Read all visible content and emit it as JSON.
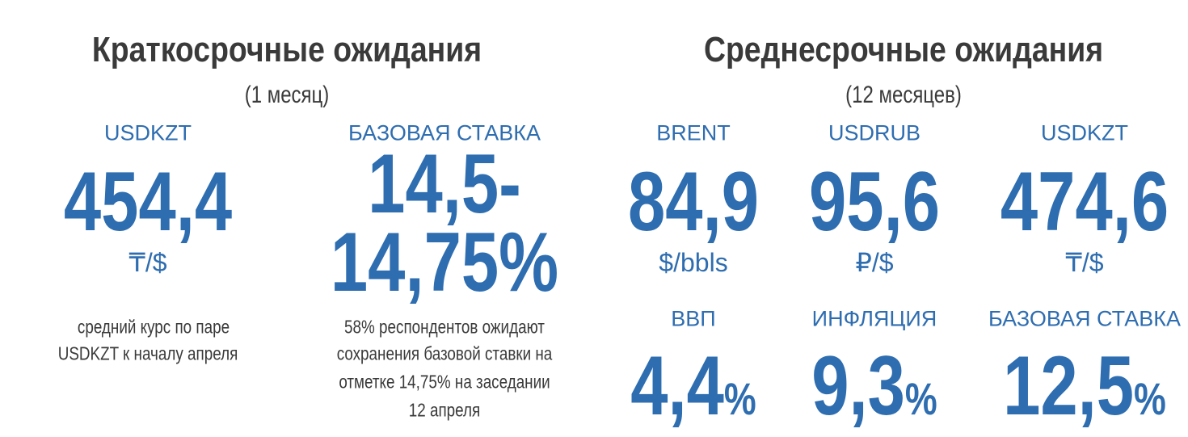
{
  "short_term": {
    "title": "Краткосрочные ожидания",
    "subtitle": "(1 месяц)",
    "items": [
      {
        "label": "USDKZT",
        "value": [
          "454,4"
        ],
        "unit": "₸/$",
        "note": [
          "средний курс по паре",
          "USDKZT к началу апреля"
        ]
      },
      {
        "label": "БАЗОВАЯ СТАВКА",
        "value": [
          "14,5-",
          "14,75%"
        ],
        "note": [
          "58% респондентов ожидают",
          "сохранения базовой ставки на",
          "отметке 14,75% на заседании",
          "12 апреля"
        ]
      }
    ]
  },
  "mid_term": {
    "title": "Среднесрочные ожидания",
    "subtitle": "(12 месяцев)",
    "top_row": [
      {
        "label": "BRENT",
        "value": "84,9",
        "unit": "$/bbls"
      },
      {
        "label": "USDRUB",
        "value": "95,6",
        "unit": "₽/$"
      },
      {
        "label": "USDKZT",
        "value": "474,6",
        "unit": "₸/$"
      }
    ],
    "bottom_row": [
      {
        "label": "ВВП",
        "value": "4,4",
        "unit": "%"
      },
      {
        "label": "ИНФЛЯЦИЯ",
        "value": "9,3",
        "unit": "%"
      },
      {
        "label": "БАЗОВАЯ СТАВКА",
        "value": "12,5",
        "unit": "%"
      }
    ]
  }
}
